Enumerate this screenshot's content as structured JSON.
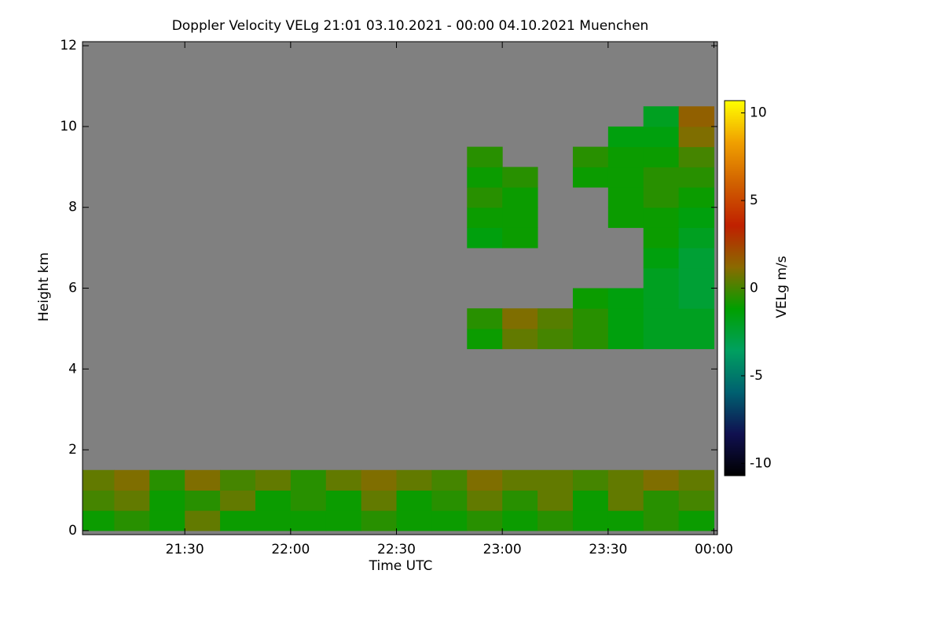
{
  "chart_data": {
    "type": "heatmap",
    "title": "Doppler Velocity VELg   21:01 03.10.2021 - 00:00 04.10.2021 Muenchen",
    "x_label": "Time UTC",
    "y_label": "Height km",
    "colorbar_label": "VELg m/s",
    "x": [
      1265,
      1275,
      1285,
      1295,
      1305,
      1315,
      1325,
      1335,
      1345,
      1355,
      1365,
      1375,
      1385,
      1395,
      1405,
      1415,
      1425,
      1435
    ],
    "y": [
      0.25,
      0.75,
      1.25,
      1.75,
      2.25,
      2.75,
      3.25,
      3.75,
      4.25,
      4.75,
      5.25,
      5.75,
      6.25,
      6.75,
      7.25,
      7.75,
      8.25,
      8.75,
      9.25,
      9.75,
      10.25,
      10.75,
      11.25,
      11.75
    ],
    "z": [
      [
        -1,
        -0.5,
        -1,
        0.5,
        -1,
        -1,
        -1,
        -1,
        -0.5,
        -1,
        -1,
        -0.5,
        -1,
        -0.5,
        -1,
        -1,
        -0.5,
        -1
      ],
      [
        0,
        0.5,
        -1,
        -0.5,
        0.5,
        -1,
        -0.5,
        -1,
        0.5,
        -1,
        -0.5,
        0.5,
        -0.5,
        0.5,
        -1,
        0.5,
        -0.5,
        0
      ],
      [
        0.5,
        1,
        -0.5,
        1,
        0,
        0.5,
        -0.5,
        0.5,
        1,
        0.5,
        0,
        1,
        0.5,
        0.5,
        0,
        0.5,
        1,
        0.5
      ],
      [
        null,
        null,
        null,
        null,
        null,
        null,
        null,
        null,
        null,
        null,
        null,
        null,
        null,
        null,
        null,
        null,
        null,
        null
      ],
      [
        null,
        null,
        null,
        null,
        null,
        null,
        null,
        null,
        null,
        null,
        null,
        null,
        null,
        null,
        null,
        null,
        null,
        null
      ],
      [
        null,
        null,
        null,
        null,
        null,
        null,
        null,
        null,
        null,
        null,
        null,
        null,
        null,
        null,
        null,
        null,
        null,
        null
      ],
      [
        null,
        null,
        null,
        null,
        null,
        null,
        null,
        null,
        null,
        null,
        null,
        null,
        null,
        null,
        null,
        null,
        null,
        null
      ],
      [
        null,
        null,
        null,
        null,
        null,
        null,
        null,
        null,
        null,
        null,
        null,
        null,
        null,
        null,
        null,
        null,
        null,
        null
      ],
      [
        null,
        null,
        null,
        null,
        null,
        null,
        null,
        null,
        null,
        null,
        null,
        null,
        null,
        null,
        null,
        null,
        null,
        null
      ],
      [
        null,
        null,
        null,
        null,
        null,
        null,
        null,
        null,
        null,
        null,
        null,
        -1,
        0.5,
        0,
        -0.5,
        -1.5,
        -2,
        -2
      ],
      [
        null,
        null,
        null,
        null,
        null,
        null,
        null,
        null,
        null,
        null,
        null,
        -0.5,
        1,
        0.3,
        -0.5,
        -1.5,
        -2,
        -2
      ],
      [
        null,
        null,
        null,
        null,
        null,
        null,
        null,
        null,
        null,
        null,
        null,
        null,
        null,
        null,
        -1,
        -1.5,
        -2,
        -2.5
      ],
      [
        null,
        null,
        null,
        null,
        null,
        null,
        null,
        null,
        null,
        null,
        null,
        null,
        null,
        null,
        null,
        null,
        -2,
        -2.5
      ],
      [
        null,
        null,
        null,
        null,
        null,
        null,
        null,
        null,
        null,
        null,
        null,
        null,
        null,
        null,
        null,
        null,
        -1.5,
        -2.5
      ],
      [
        null,
        null,
        null,
        null,
        null,
        null,
        null,
        null,
        null,
        null,
        null,
        -1.5,
        -1,
        null,
        null,
        null,
        -1,
        -2
      ],
      [
        null,
        null,
        null,
        null,
        null,
        null,
        null,
        null,
        null,
        null,
        null,
        -1,
        -1,
        null,
        null,
        -1,
        -1,
        -1.5
      ],
      [
        null,
        null,
        null,
        null,
        null,
        null,
        null,
        null,
        null,
        null,
        null,
        -0.5,
        -1,
        null,
        null,
        -1,
        -0.5,
        -1
      ],
      [
        null,
        null,
        null,
        null,
        null,
        null,
        null,
        null,
        null,
        null,
        null,
        -1,
        -0.5,
        null,
        -1,
        -1,
        -0.5,
        -0.5
      ],
      [
        null,
        null,
        null,
        null,
        null,
        null,
        null,
        null,
        null,
        null,
        null,
        -0.5,
        null,
        null,
        -0.5,
        -1,
        -1,
        0
      ],
      [
        null,
        null,
        null,
        null,
        null,
        null,
        null,
        null,
        null,
        null,
        null,
        null,
        null,
        null,
        null,
        -1.5,
        -1.5,
        1
      ],
      [
        null,
        null,
        null,
        null,
        null,
        null,
        null,
        null,
        null,
        null,
        null,
        null,
        null,
        null,
        null,
        null,
        -2,
        1.5
      ],
      [
        null,
        null,
        null,
        null,
        null,
        null,
        null,
        null,
        null,
        null,
        null,
        null,
        null,
        null,
        null,
        null,
        null,
        null
      ],
      [
        null,
        null,
        null,
        null,
        null,
        null,
        null,
        null,
        null,
        null,
        null,
        null,
        null,
        null,
        null,
        null,
        null,
        null
      ],
      [
        null,
        null,
        null,
        null,
        null,
        null,
        null,
        null,
        null,
        null,
        null,
        null,
        null,
        null,
        null,
        null,
        null,
        null
      ]
    ],
    "xlim": [
      1261,
      1441
    ],
    "xticks": [
      {
        "value": 1290,
        "label": "21:30"
      },
      {
        "value": 1320,
        "label": "22:00"
      },
      {
        "value": 1350,
        "label": "22:30"
      },
      {
        "value": 1380,
        "label": "23:00"
      },
      {
        "value": 1410,
        "label": "23:30"
      },
      {
        "value": 1440,
        "label": "00:00"
      }
    ],
    "ylim": [
      -0.1,
      12.1
    ],
    "yticks": [
      0,
      2,
      4,
      6,
      8,
      10,
      12
    ],
    "zlim": [
      -10.7,
      10.7
    ],
    "zticks": [
      -10,
      -5,
      0,
      5,
      10
    ],
    "colormap": [
      "#000000",
      "#101050",
      "#006070",
      "#00a060",
      "#00a000",
      "#8a6a00",
      "#c02000",
      "#d06000",
      "#f0a000",
      "#ffff00"
    ],
    "missing_color": "#808080"
  }
}
